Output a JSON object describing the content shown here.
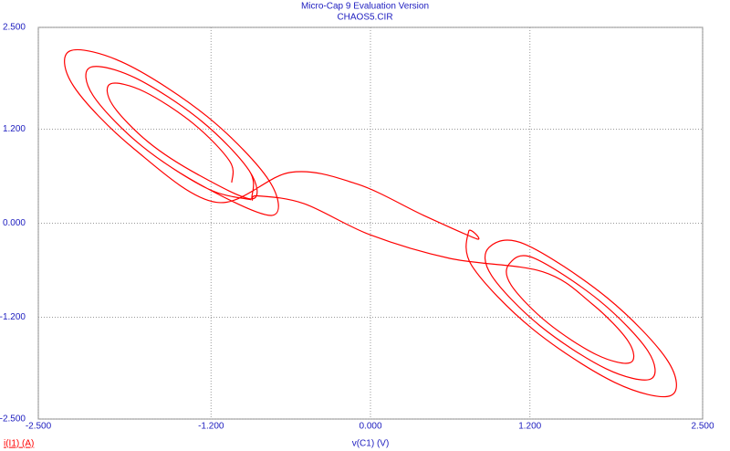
{
  "chart_data": {
    "type": "line",
    "title": "Micro-Cap 9 Evaluation Version",
    "subtitle": "CHAOS5.CIR",
    "x_label": "v(C1) (V)",
    "y_label": "i(I1) (A)",
    "xlim": [
      -2.5,
      2.5
    ],
    "ylim": [
      -2.5,
      2.5
    ],
    "xticks": [
      {
        "value": -2.5,
        "label": "-2.500"
      },
      {
        "value": -1.2,
        "label": "-1.200"
      },
      {
        "value": 0,
        "label": "0.000"
      },
      {
        "value": 1.2,
        "label": "1.200"
      },
      {
        "value": 2.5,
        "label": "2.500"
      }
    ],
    "yticks": [
      {
        "value": -2.5,
        "label": "-2.500"
      },
      {
        "value": -1.2,
        "label": "-1.200"
      },
      {
        "value": 0,
        "label": "0.000"
      },
      {
        "value": 1.2,
        "label": "1.200"
      },
      {
        "value": 2.5,
        "label": "2.500"
      }
    ],
    "grid": true,
    "x": [
      -1.044,
      -1.059,
      -1.332,
      -1.703,
      -1.956,
      -1.941,
      -1.668,
      -1.297,
      -0.892,
      -0.912,
      -1.276,
      -1.772,
      -2.108,
      -2.088,
      -1.724,
      -1.228,
      -0.74,
      -0.765,
      -1.22,
      -1.839,
      -2.26,
      -2.235,
      -1.78,
      -1.161,
      -0.6,
      -0.1,
      0.4,
      0.8,
      0.74,
      0.765,
      1.22,
      1.839,
      2.26,
      2.235,
      1.78,
      1.161,
      0.892,
      0.912,
      1.276,
      1.772,
      2.108,
      2.088,
      1.724,
      1.228,
      1.044,
      1.059,
      1.332,
      1.703,
      1.956,
      1.941,
      1.668,
      1.297,
      0.6,
      0.0,
      -0.5,
      -0.85,
      -0.892,
      -0.912,
      -1.276,
      -1.772,
      -2.108,
      -2.088,
      -1.724,
      -1.228,
      -0.9
    ],
    "series": [
      {
        "color": "#ff0000",
        "values": [
          0.52,
          0.79,
          1.27,
          1.68,
          1.78,
          1.51,
          1.03,
          0.62,
          0.31,
          0.669,
          1.31,
          1.857,
          1.99,
          1.631,
          0.99,
          0.443,
          0.1,
          0.549,
          1.35,
          2.033,
          2.2,
          1.751,
          0.95,
          0.267,
          0.65,
          0.5,
          0.1,
          -0.2,
          -0.1,
          -0.549,
          -1.35,
          -2.033,
          -2.2,
          -1.751,
          -0.95,
          -0.267,
          -0.31,
          -0.669,
          -1.31,
          -1.857,
          -1.99,
          -1.631,
          -0.99,
          -0.443,
          -0.52,
          -0.79,
          -1.27,
          -1.68,
          -1.78,
          -1.51,
          -1.03,
          -0.62,
          -0.45,
          -0.15,
          0.25,
          0.35,
          0.31,
          0.669,
          1.31,
          1.857,
          1.99,
          1.631,
          0.99,
          0.443,
          0.3
        ]
      }
    ]
  }
}
